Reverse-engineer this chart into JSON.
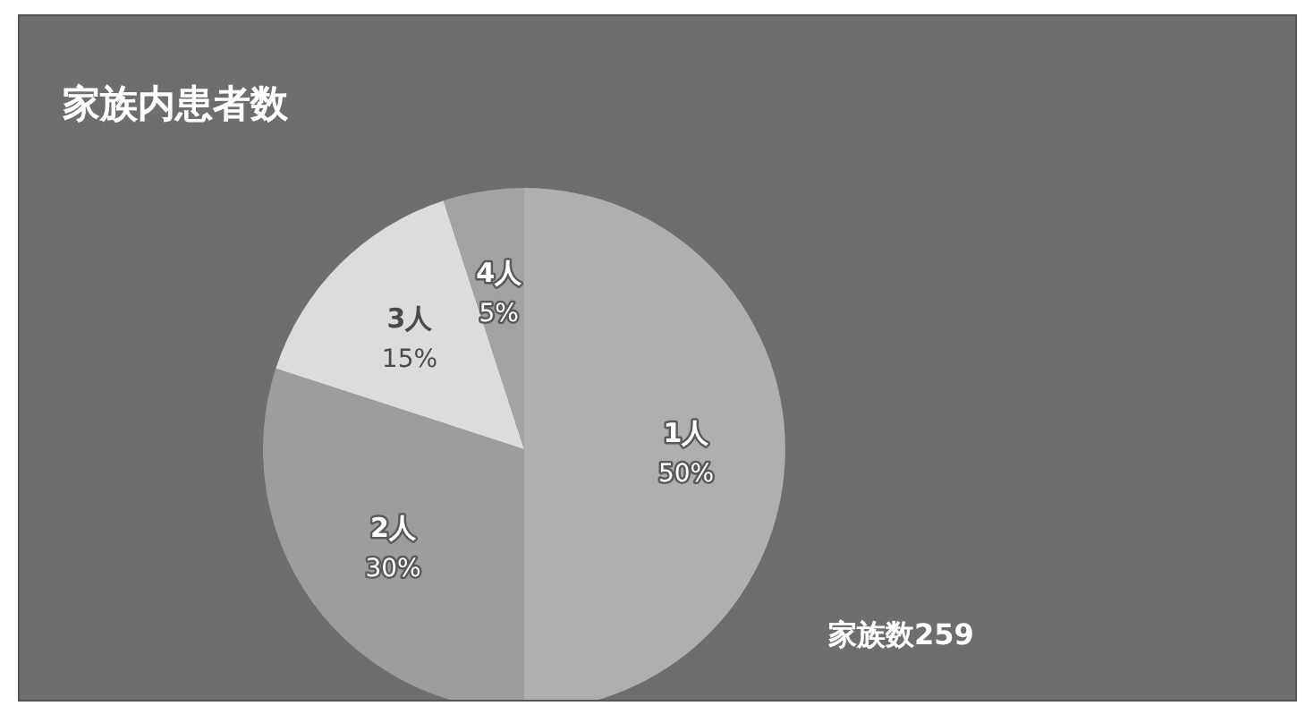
{
  "chart_data": {
    "type": "pie",
    "title": "家族内患者数",
    "categories": [
      "1人",
      "2人",
      "3人",
      "4人"
    ],
    "values": [
      50,
      30,
      15,
      5
    ],
    "value_labels": [
      "50%",
      "30%",
      "15%",
      "5%"
    ],
    "colors": [
      "#afafaf",
      "#9d9d9d",
      "#dcdcdc",
      "#a3a3a3"
    ],
    "annotations": [
      "家族数259"
    ]
  }
}
